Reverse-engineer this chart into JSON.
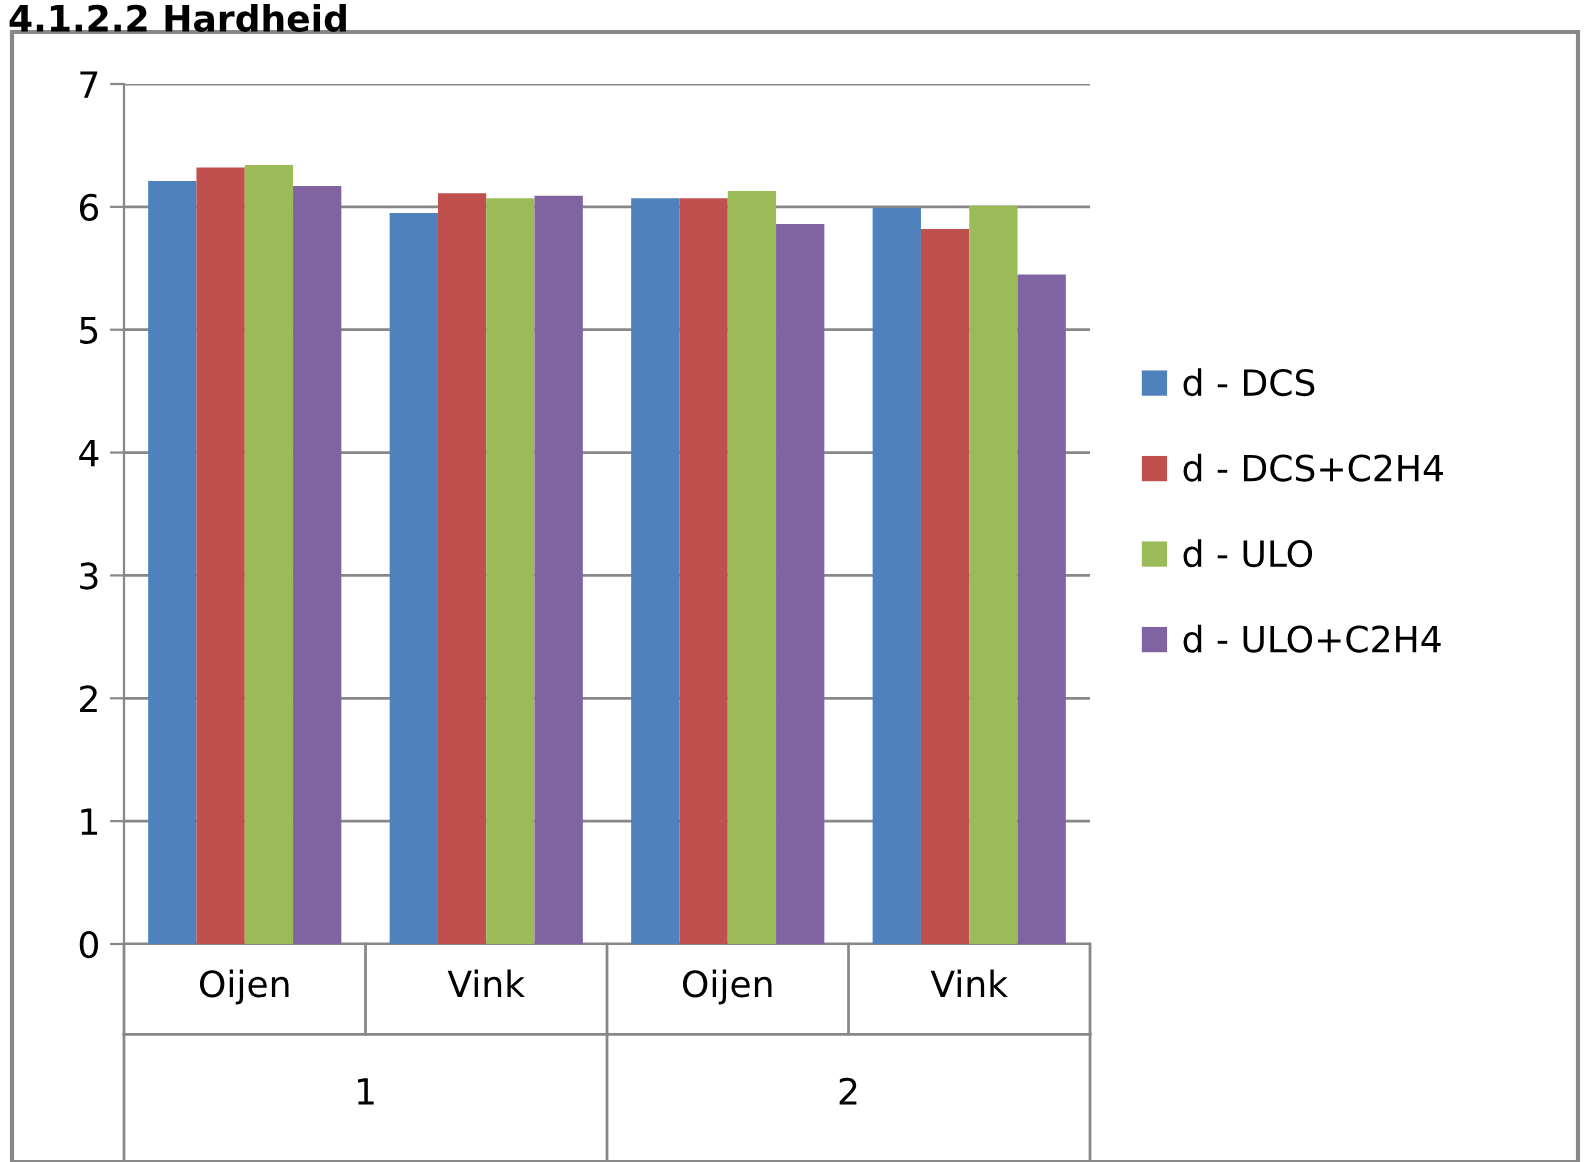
{
  "chart_data": {
    "type": "bar",
    "title": "4.1.2.2 Hardheid",
    "categories": [
      "Oijen",
      "Vink",
      "Oijen",
      "Vink"
    ],
    "series": [
      {
        "name": "d - DCS",
        "color": "#4f81bd",
        "values": [
          6.21,
          5.95,
          6.07,
          5.99
        ]
      },
      {
        "name": "d - DCS+C2H4",
        "color": "#c0504d",
        "values": [
          6.32,
          6.11,
          6.07,
          5.82
        ]
      },
      {
        "name": "d - ULO",
        "color": "#9bbb59",
        "values": [
          6.34,
          6.07,
          6.13,
          6.01
        ]
      },
      {
        "name": "d - ULO+C2H4",
        "color": "#8064a2",
        "values": [
          6.17,
          6.09,
          5.86,
          5.45
        ]
      }
    ],
    "annotations": [
      "1",
      "2"
    ],
    "ylim": [
      0,
      7
    ],
    "yticks": [
      0,
      1,
      2,
      3,
      4,
      5,
      6,
      7
    ],
    "grid": "y",
    "legend": "right"
  }
}
